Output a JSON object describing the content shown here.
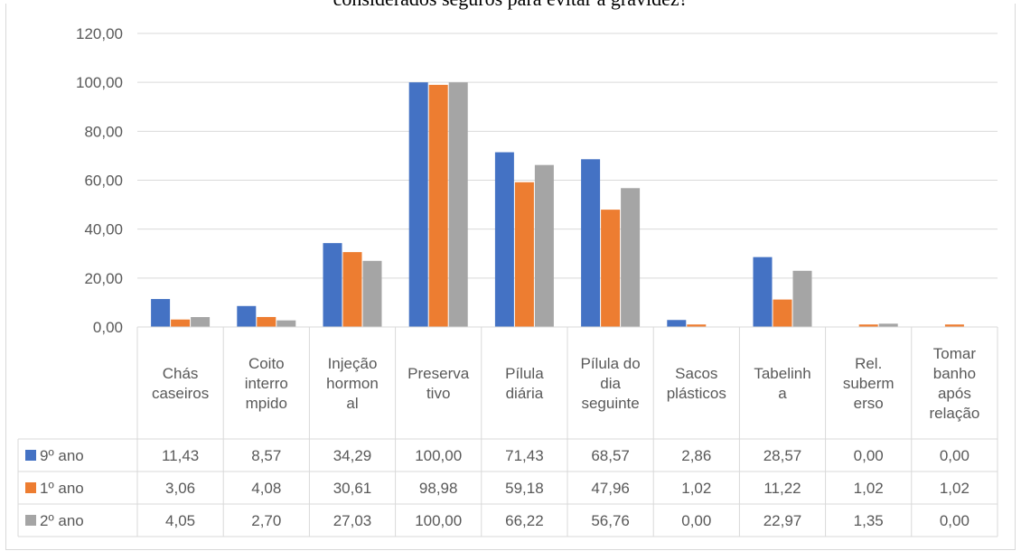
{
  "title": "considerados seguros para evitar a gravidez?",
  "chart_data": {
    "type": "bar",
    "categories": [
      [
        "Chás",
        "caseiros"
      ],
      [
        "Coito",
        "interro",
        "mpido"
      ],
      [
        "Injeção",
        "hormon",
        "al"
      ],
      [
        "Preserva",
        "tivo"
      ],
      [
        "Pílula",
        "diária"
      ],
      [
        "Pílula do",
        "dia",
        "seguinte"
      ],
      [
        "Sacos",
        "plásticos"
      ],
      [
        "Tabelinh",
        "a"
      ],
      [
        "Rel.",
        "suberm",
        "erso"
      ],
      [
        "Tomar",
        "banho",
        "após",
        "relação"
      ]
    ],
    "series": [
      {
        "name": "9º ano",
        "color": "#4472C4",
        "values": [
          11.43,
          8.57,
          34.29,
          100.0,
          71.43,
          68.57,
          2.86,
          28.57,
          0.0,
          0.0
        ],
        "labels": [
          "11,43",
          "8,57",
          "34,29",
          "100,00",
          "71,43",
          "68,57",
          "2,86",
          "28,57",
          "0,00",
          "0,00"
        ]
      },
      {
        "name": "1º ano",
        "color": "#ED7D31",
        "values": [
          3.06,
          4.08,
          30.61,
          98.98,
          59.18,
          47.96,
          1.02,
          11.22,
          1.02,
          1.02
        ],
        "labels": [
          "3,06",
          "4,08",
          "30,61",
          "98,98",
          "59,18",
          "47,96",
          "1,02",
          "11,22",
          "1,02",
          "1,02"
        ]
      },
      {
        "name": "2º ano",
        "color": "#A5A5A5",
        "values": [
          4.05,
          2.7,
          27.03,
          100.0,
          66.22,
          56.76,
          0.0,
          22.97,
          1.35,
          0.0
        ],
        "labels": [
          "4,05",
          "2,70",
          "27,03",
          "100,00",
          "66,22",
          "56,76",
          "0,00",
          "22,97",
          "1,35",
          "0,00"
        ]
      }
    ],
    "ylim": [
      0,
      120
    ],
    "yticks": [
      "0,00",
      "20,00",
      "40,00",
      "60,00",
      "80,00",
      "100,00",
      "120,00"
    ],
    "grid": true,
    "legend": "data-table"
  }
}
